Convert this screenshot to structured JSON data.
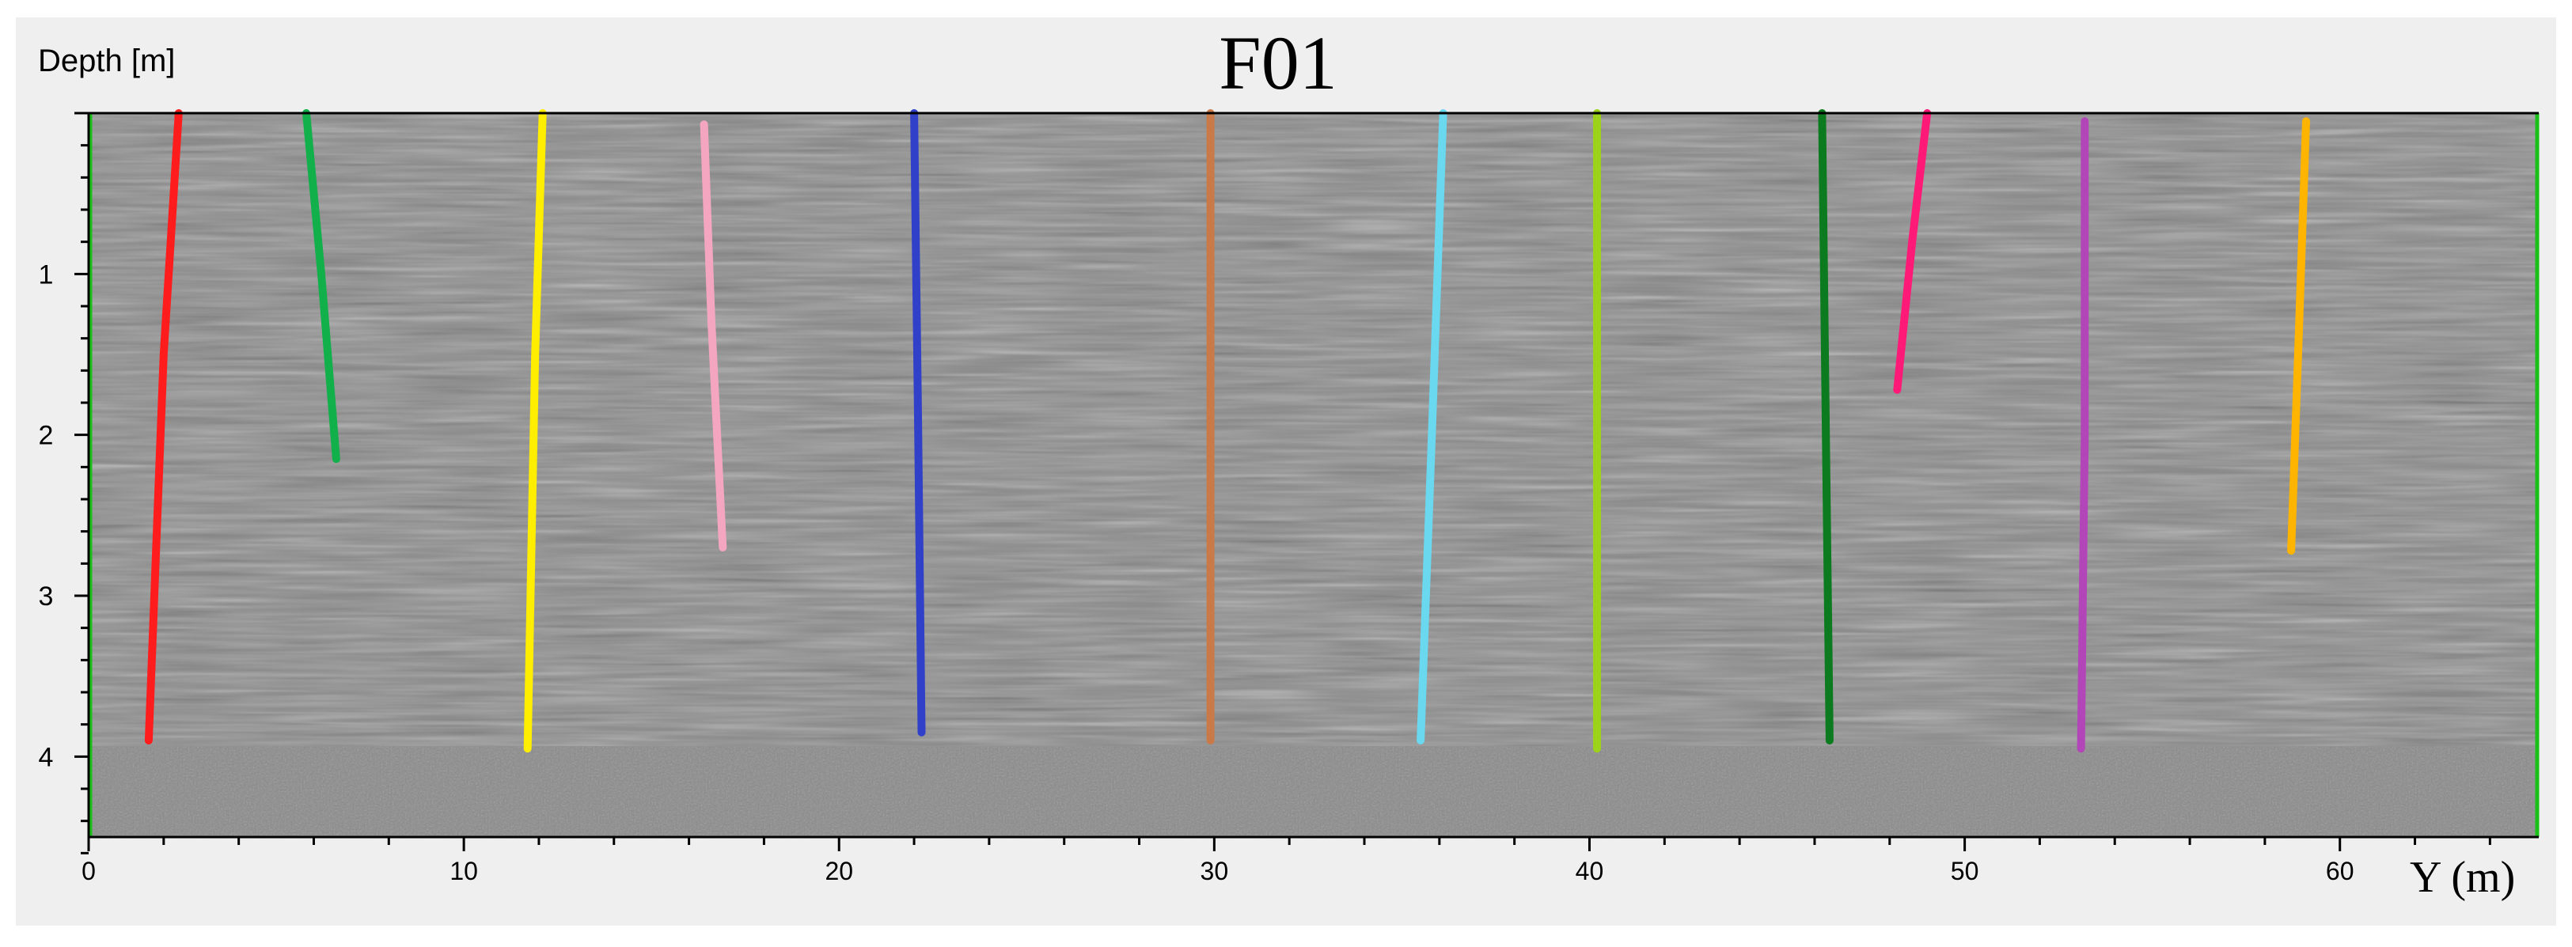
{
  "chart_data": {
    "type": "line",
    "title": "F01",
    "xlabel": "Y (m)",
    "ylabel": "Depth [m]",
    "xlim": [
      0,
      65.3
    ],
    "ylim": [
      0,
      4.5
    ],
    "y_inverted": true,
    "x_ticks": [
      0,
      10,
      20,
      30,
      40,
      50,
      60
    ],
    "y_ticks": [
      1,
      2,
      3,
      4
    ],
    "grid": false,
    "background": "grayscale radargram",
    "colors": {
      "axis": "#000000",
      "panel": "#efefef",
      "radargram_mid": "#8a8a8a",
      "edge_markers": "#18c018"
    },
    "series": [
      {
        "color": "#ff1c1c",
        "x": [
          2.4,
          2.0,
          1.6
        ],
        "y": [
          0.0,
          1.5,
          3.9
        ]
      },
      {
        "color": "#12b04a",
        "x": [
          5.8,
          6.2,
          6.6
        ],
        "y": [
          0.0,
          1.0,
          2.15
        ]
      },
      {
        "color": "#ffee00",
        "x": [
          12.1,
          11.9,
          11.7
        ],
        "y": [
          0.0,
          1.5,
          3.95
        ]
      },
      {
        "color": "#f4a6c0",
        "x": [
          16.4,
          16.6,
          16.9
        ],
        "y": [
          0.07,
          1.3,
          2.7
        ]
      },
      {
        "color": "#3040c8",
        "x": [
          22.0,
          22.1,
          22.2
        ],
        "y": [
          0.0,
          1.8,
          3.85
        ]
      },
      {
        "color": "#c97a48",
        "x": [
          29.9,
          29.9,
          29.9
        ],
        "y": [
          0.0,
          2.0,
          3.9
        ]
      },
      {
        "color": "#6ad8ee",
        "x": [
          36.1,
          35.8,
          35.5
        ],
        "y": [
          0.0,
          2.0,
          3.9
        ]
      },
      {
        "color": "#9cd21a",
        "x": [
          40.2,
          40.2,
          40.2
        ],
        "y": [
          0.0,
          2.0,
          3.95
        ]
      },
      {
        "color": "#0c7a1e",
        "x": [
          46.2,
          46.3,
          46.4
        ],
        "y": [
          0.0,
          2.0,
          3.9
        ]
      },
      {
        "color": "#ff1a78",
        "x": [
          49.0,
          48.6,
          48.2
        ],
        "y": [
          0.0,
          0.8,
          1.72
        ]
      },
      {
        "color": "#b246b8",
        "x": [
          53.2,
          53.2,
          53.1
        ],
        "y": [
          0.05,
          2.0,
          3.95
        ]
      },
      {
        "color": "#ffb400",
        "x": [
          59.1,
          58.9,
          58.7
        ],
        "y": [
          0.05,
          1.4,
          2.72
        ]
      }
    ]
  }
}
